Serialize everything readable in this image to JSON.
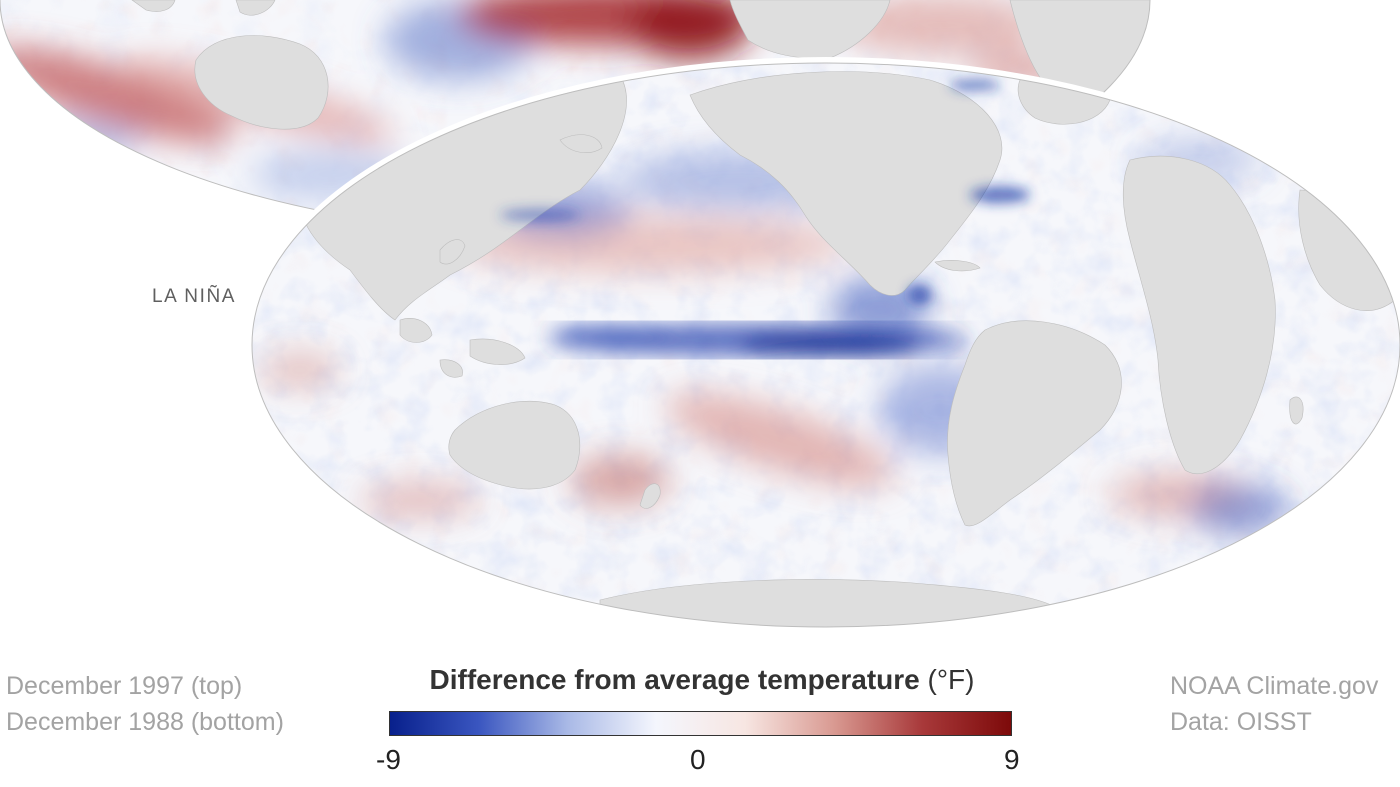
{
  "panel_label": "LA NIÑA",
  "dates": {
    "top": "December 1997 (top)",
    "bottom": "December 1988 (bottom)"
  },
  "legend": {
    "title": "Difference from average temperature",
    "unit": "(°F)",
    "min_label": "-9",
    "mid_label": "0",
    "max_label": "9",
    "min": -9,
    "max": 9,
    "colors": [
      "#08208c",
      "#3a56c0",
      "#a9b9e6",
      "#f4f6fd",
      "#f7e6e2",
      "#d99a92",
      "#a8393a",
      "#7d0a0a"
    ]
  },
  "credits": {
    "source": "NOAA Climate.gov",
    "data": "Data: OISST"
  },
  "colors": {
    "land": "#dedede",
    "ocean_neutral": "#f6f7fb",
    "warm": "#a81e22",
    "cool": "#1f3aa8",
    "text_muted": "#a3a3a3",
    "text_label": "#5f5f5f"
  }
}
